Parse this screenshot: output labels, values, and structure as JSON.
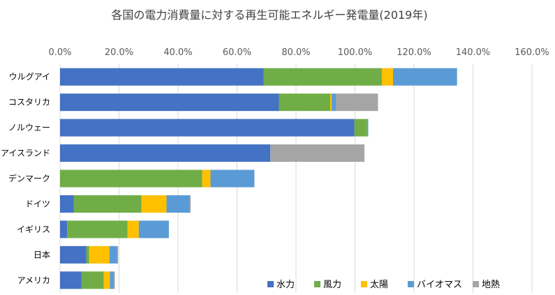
{
  "chart_data": {
    "type": "bar",
    "orientation": "horizontal",
    "stacked": true,
    "title": "各国の電力消費量に対する再生可能エネルギー発電量(2019年)",
    "xlabel": "",
    "ylabel": "",
    "xlim": [
      0,
      160
    ],
    "x_axis_position": "top",
    "x_ticks": [
      "0.0%",
      "20.0%",
      "40.0%",
      "60.0%",
      "80.0%",
      "100.0%",
      "120.0%",
      "140.0%",
      "160.0%"
    ],
    "grid": true,
    "legend_position": "bottom-right",
    "categories": [
      "ウルグアイ",
      "コスタリカ",
      "ノルウェー",
      "アイスランド",
      "デンマーク",
      "ドイツ",
      "イギリス",
      "日本",
      "アメリカ"
    ],
    "series": [
      {
        "name": "水力",
        "color": "#4472C4",
        "values": [
          69.0,
          74.2,
          99.8,
          71.3,
          0.0,
          4.7,
          2.4,
          8.9,
          7.3
        ]
      },
      {
        "name": "風力",
        "color": "#70AD47",
        "values": [
          40.1,
          17.4,
          4.3,
          0.0,
          48.2,
          22.9,
          20.5,
          1.0,
          7.5
        ]
      },
      {
        "name": "太陽",
        "color": "#FFC000",
        "values": [
          3.8,
          0.5,
          0.0,
          0.0,
          2.8,
          8.5,
          3.8,
          6.9,
          2.1
        ]
      },
      {
        "name": "バイオマス",
        "color": "#5B9BD5",
        "values": [
          21.7,
          1.4,
          0.4,
          0.0,
          14.9,
          7.8,
          10.2,
          2.6,
          1.3
        ]
      },
      {
        "name": "地熱",
        "color": "#A5A5A5",
        "values": [
          0.0,
          14.3,
          0.0,
          31.9,
          0.0,
          0.4,
          0.0,
          0.3,
          0.4
        ]
      }
    ]
  }
}
